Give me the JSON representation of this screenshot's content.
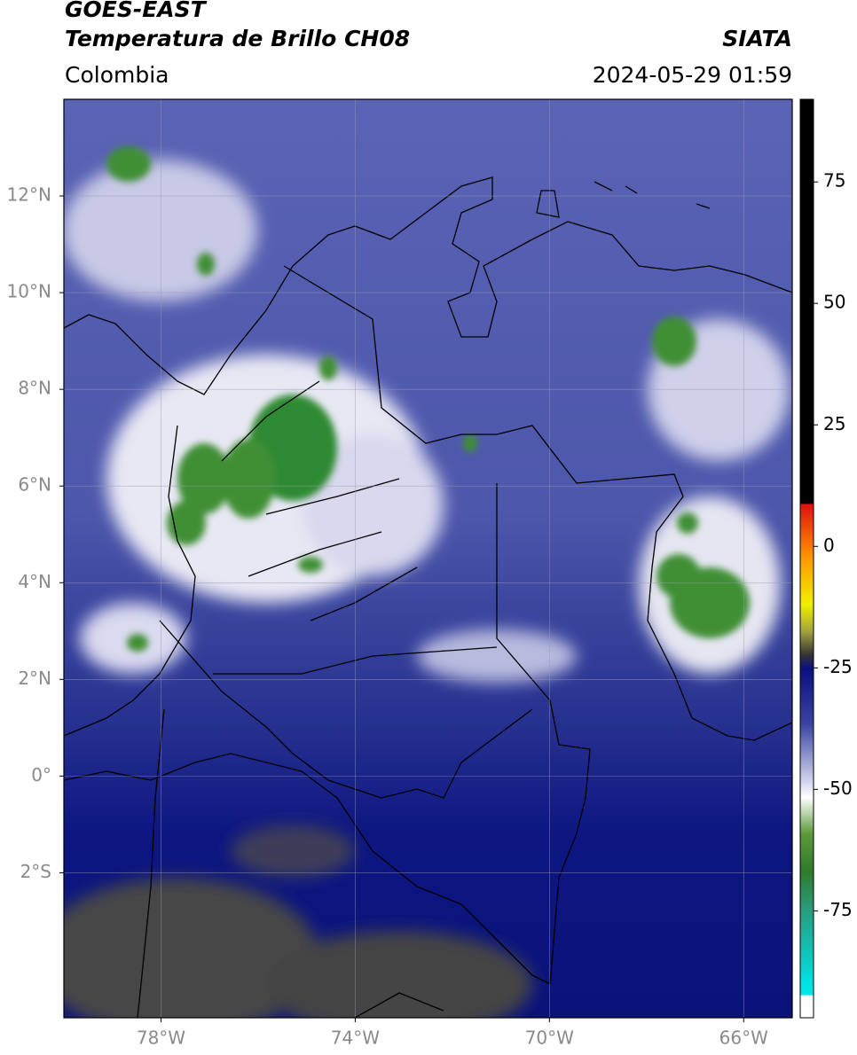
{
  "header": {
    "title_lines": [
      "GOES-EAST",
      "Temperatura de Brillo CH08"
    ],
    "region": "Colombia",
    "source": "SIATA",
    "timestamp": "2024-05-29 01:59"
  },
  "map": {
    "lonlim": [
      -80,
      -65
    ],
    "latlim": [
      -5,
      14
    ],
    "grid": true,
    "lon_ticks": [
      {
        "value": -78,
        "label": "78°W"
      },
      {
        "value": -74,
        "label": "74°W"
      },
      {
        "value": -70,
        "label": "70°W"
      },
      {
        "value": -66,
        "label": "66°W"
      }
    ],
    "lat_ticks": [
      {
        "value": 12,
        "label": "12°N"
      },
      {
        "value": 10,
        "label": "10°N"
      },
      {
        "value": 8,
        "label": "8°N"
      },
      {
        "value": 6,
        "label": "6°N"
      },
      {
        "value": 4,
        "label": "4°N"
      },
      {
        "value": 2,
        "label": "2°N"
      },
      {
        "value": 0,
        "label": "0°"
      },
      {
        "value": -2,
        "label": "2°S"
      }
    ]
  },
  "colorbar": {
    "lim": [
      -97,
      92
    ],
    "ticks": [
      75,
      50,
      25,
      0,
      -25,
      -50,
      -75
    ]
  }
}
